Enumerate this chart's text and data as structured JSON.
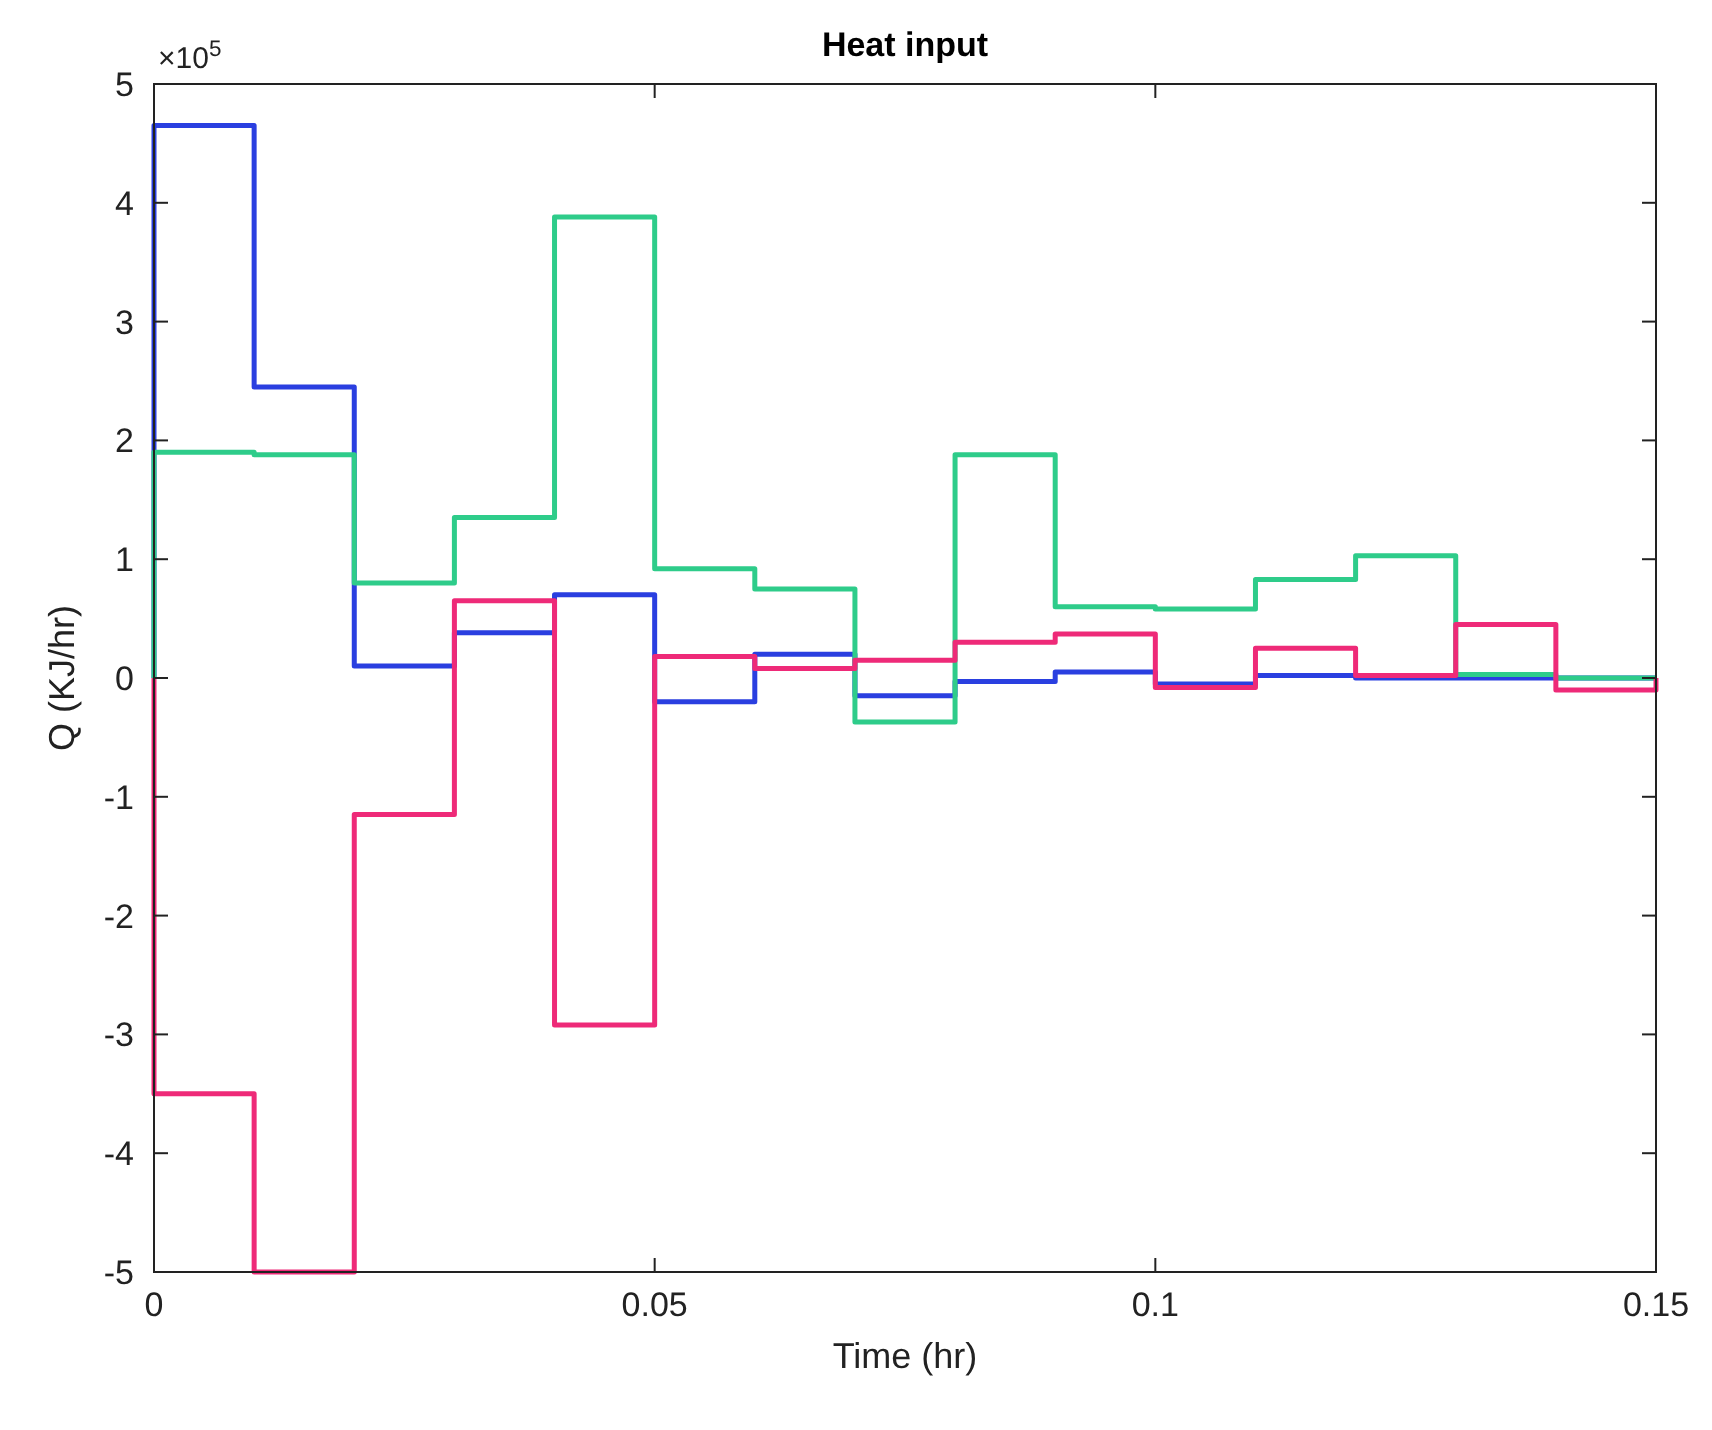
{
  "chart_data": {
    "type": "step",
    "title": "Heat input",
    "xlabel": "Time (hr)",
    "ylabel": "Q (KJ/hr)",
    "annotations": [
      "×10$^{5}$"
    ],
    "x": [
      0,
      0,
      0.01,
      0.02,
      0.03,
      0.04,
      0.05,
      0.06,
      0.07,
      0.08,
      0.09,
      0.1,
      0.11,
      0.12,
      0.13,
      0.14,
      0.15
    ],
    "series": [
      {
        "color": "#2a3fe0",
        "values": [
          0,
          4.65,
          2.45,
          0.1,
          0.38,
          0.7,
          -0.2,
          0.2,
          -0.15,
          -0.03,
          0.05,
          -0.05,
          0.02,
          0,
          0,
          0,
          0
        ]
      },
      {
        "color": "#2ecc8a",
        "values": [
          0,
          1.9,
          1.88,
          0.8,
          1.35,
          3.88,
          0.92,
          0.75,
          -0.37,
          1.88,
          0.6,
          0.58,
          0.83,
          1.03,
          0.03,
          0,
          0
        ]
      },
      {
        "color": "#ee2a78",
        "values": [
          0,
          -3.5,
          -5,
          -1.15,
          0.65,
          -2.92,
          0.18,
          0.08,
          0.15,
          0.3,
          0.37,
          -0.08,
          0.25,
          0.02,
          0.45,
          -0.1,
          0
        ]
      }
    ],
    "xlim": [
      0,
      0.15
    ],
    "xticks": [
      0,
      0.05,
      0.1,
      0.15
    ],
    "ylim": [
      -5,
      5
    ],
    "yticks": [
      -5,
      -4,
      -3,
      -2,
      -1,
      0,
      1,
      2,
      3,
      4,
      5
    ]
  }
}
